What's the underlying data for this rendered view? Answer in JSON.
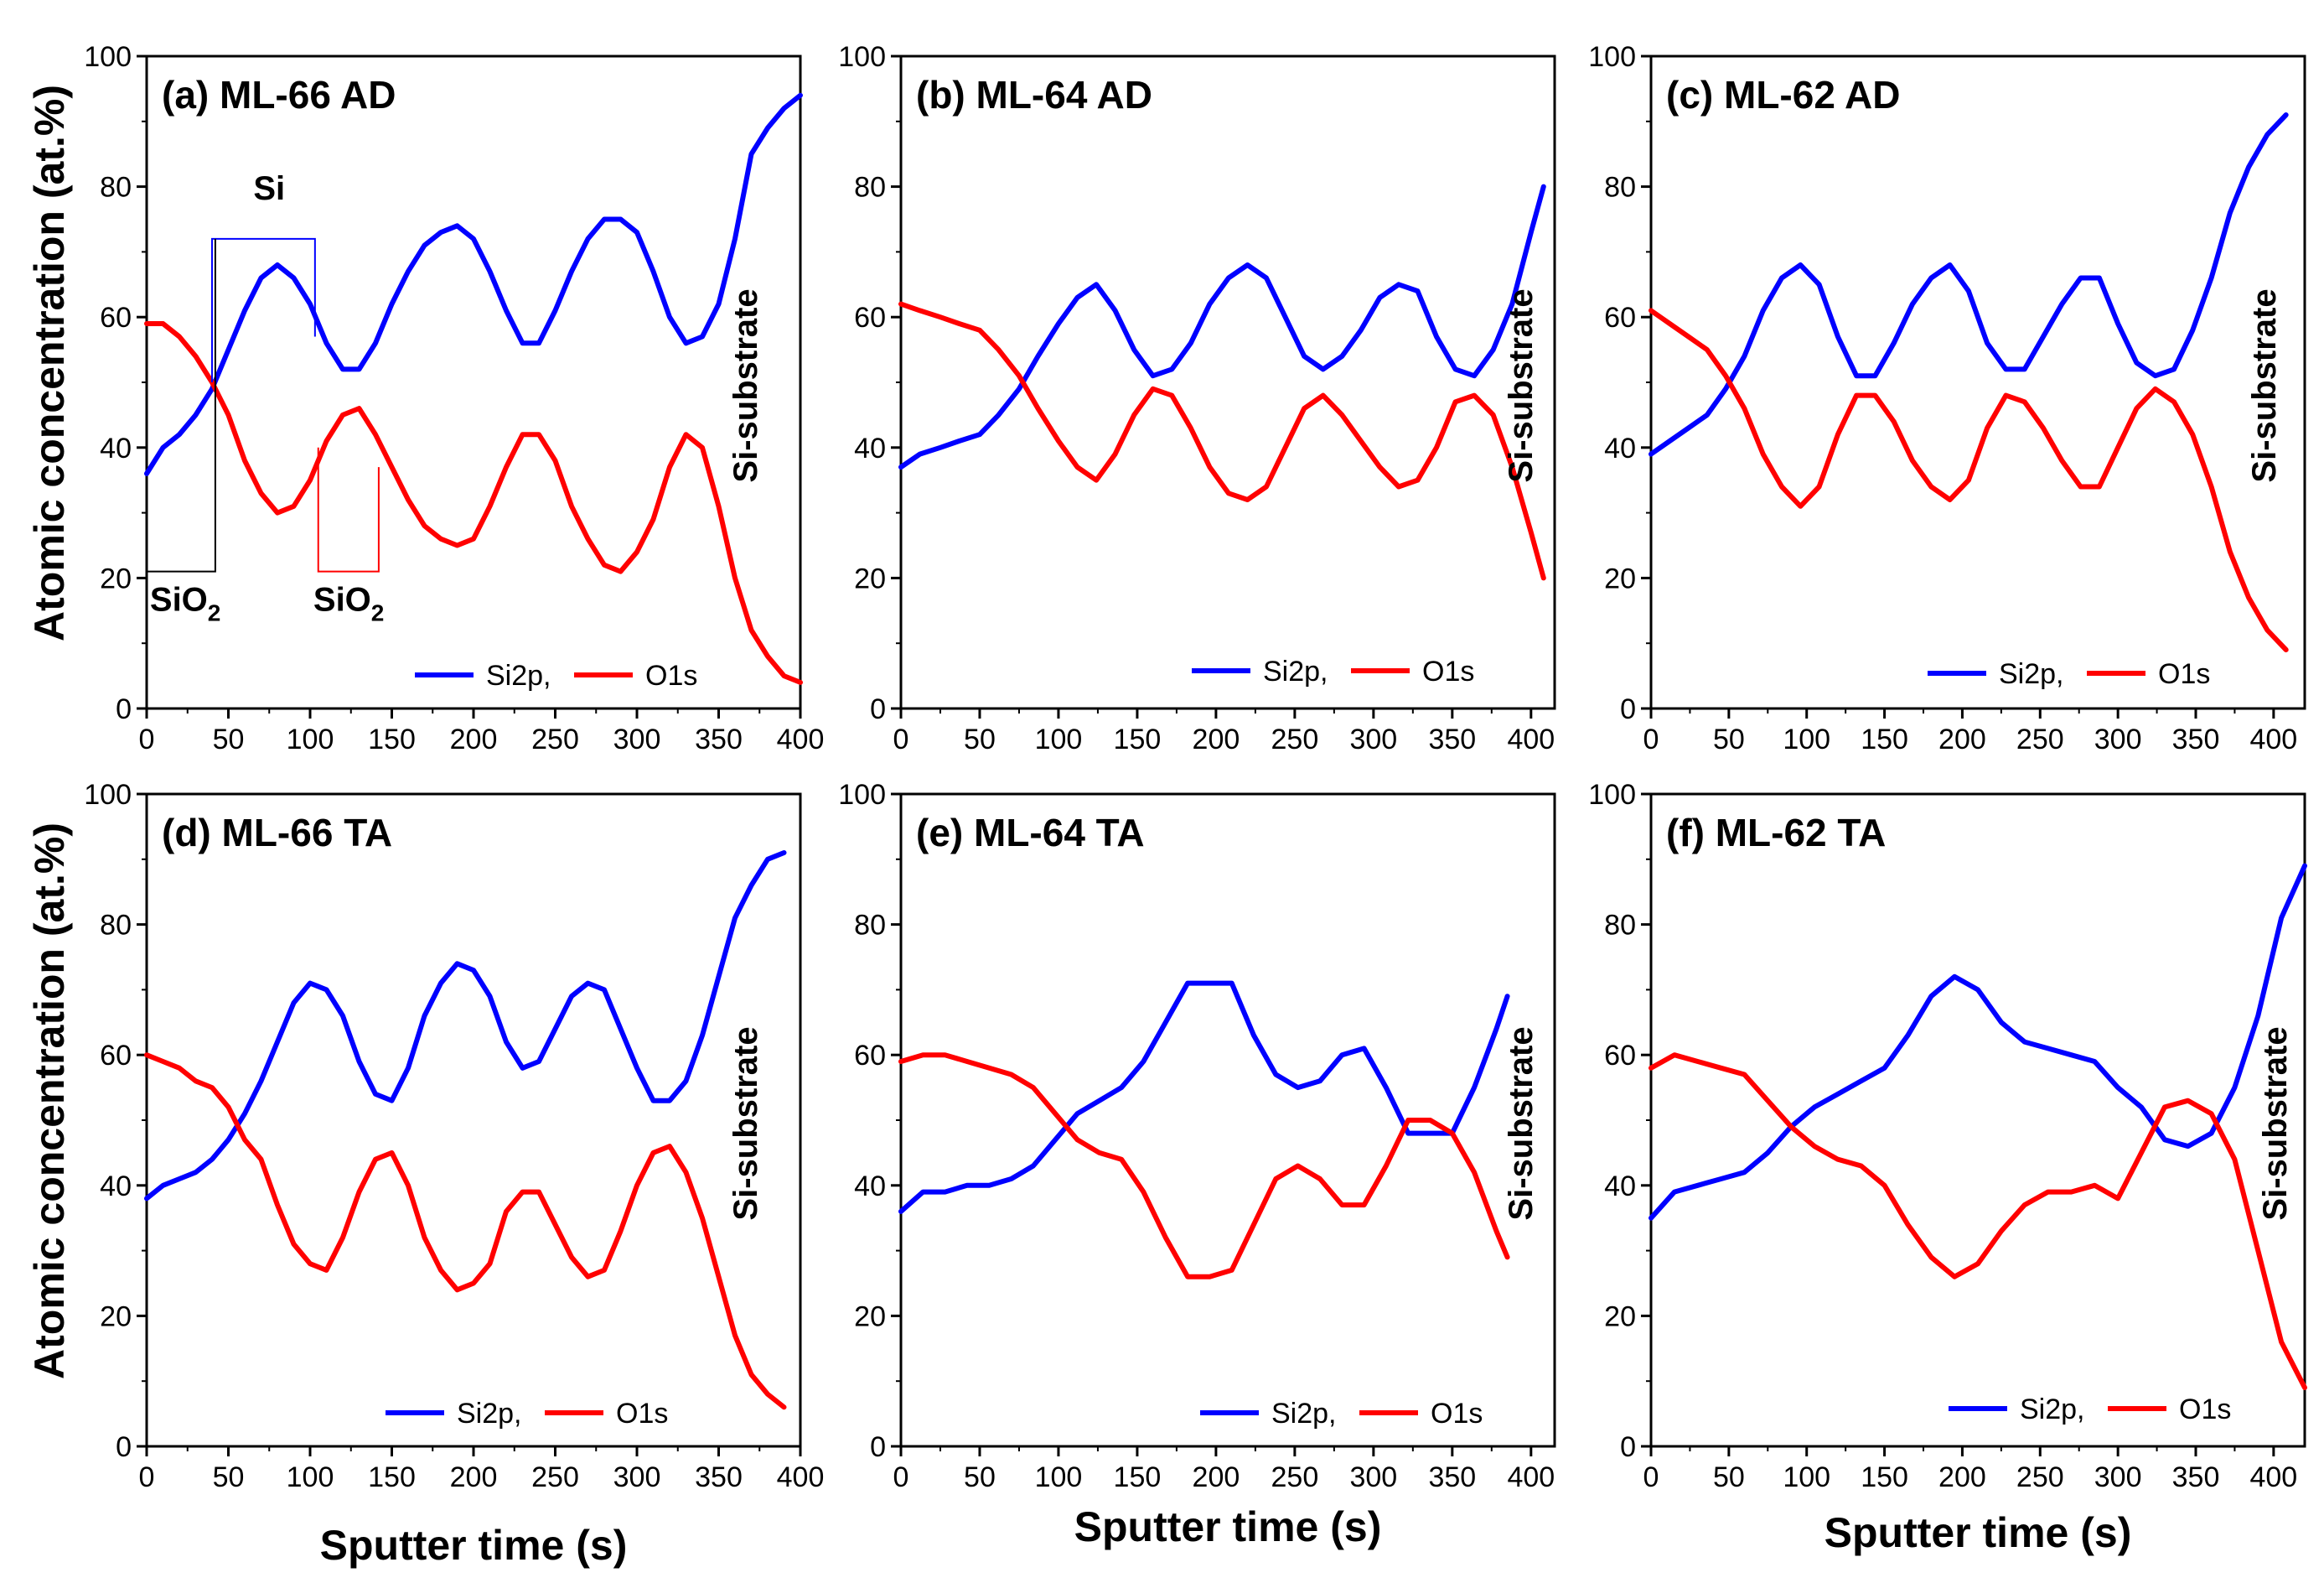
{
  "figure": {
    "ylabel": "Atomic concentration (at.%)",
    "xlabel": "Sputter time (s)",
    "colors": {
      "si": "#0000ff",
      "o": "#ff0000",
      "axis": "#000000",
      "si_box": "#0000ff",
      "sio2_box_black": "#000000",
      "sio2_box_red": "#ff0000"
    }
  },
  "chart_data": [
    {
      "type": "line",
      "title": "(a) ML-66 AD",
      "xlim": [
        0,
        400
      ],
      "ylim": [
        0,
        100
      ],
      "xticks": [
        "0",
        "50",
        "100",
        "150",
        "200",
        "250",
        "300",
        "350",
        "400"
      ],
      "yticks": [
        "0",
        "20",
        "40",
        "60",
        "80",
        "100"
      ],
      "substrate_label": "Si-substrate",
      "legend": [
        "Si2p,",
        "O1s"
      ],
      "annotations": {
        "si": "Si",
        "sio2_a": "SiO",
        "sio2_b": "SiO",
        "subscript": "2"
      },
      "series": [
        {
          "name": "Si2p",
          "x": [
            0,
            10,
            20,
            30,
            40,
            50,
            60,
            70,
            80,
            90,
            100,
            110,
            120,
            130,
            140,
            150,
            160,
            170,
            180,
            190,
            200,
            210,
            220,
            230,
            240,
            250,
            260,
            270,
            280,
            290,
            300,
            310,
            320,
            330,
            340,
            350,
            360,
            370,
            380,
            390,
            400
          ],
          "values": [
            36,
            40,
            42,
            45,
            49,
            55,
            61,
            66,
            68,
            66,
            62,
            56,
            52,
            52,
            56,
            62,
            67,
            71,
            73,
            74,
            72,
            67,
            61,
            56,
            56,
            61,
            67,
            72,
            75,
            75,
            73,
            67,
            60,
            56,
            57,
            62,
            72,
            85,
            89,
            92,
            94
          ]
        },
        {
          "name": "O1s",
          "x": [
            0,
            10,
            20,
            30,
            40,
            50,
            60,
            70,
            80,
            90,
            100,
            110,
            120,
            130,
            140,
            150,
            160,
            170,
            180,
            190,
            200,
            210,
            220,
            230,
            240,
            250,
            260,
            270,
            280,
            290,
            300,
            310,
            320,
            330,
            340,
            350,
            360,
            370,
            380,
            390,
            400
          ],
          "values": [
            59,
            59,
            57,
            54,
            50,
            45,
            38,
            33,
            30,
            31,
            35,
            41,
            45,
            46,
            42,
            37,
            32,
            28,
            26,
            25,
            26,
            31,
            37,
            42,
            42,
            38,
            31,
            26,
            22,
            21,
            24,
            29,
            37,
            42,
            40,
            31,
            20,
            12,
            8,
            5,
            4
          ]
        }
      ]
    },
    {
      "type": "line",
      "title": "(b) ML-64 AD",
      "xlim": [
        0,
        415
      ],
      "ylim": [
        0,
        100
      ],
      "xticks": [
        "0",
        "50",
        "100",
        "150",
        "200",
        "250",
        "300",
        "350",
        "400"
      ],
      "yticks": [
        "0",
        "20",
        "40",
        "60",
        "80",
        "100"
      ],
      "substrate_label": "Si-substrate",
      "legend": [
        "Si2p,",
        "O1s"
      ],
      "series": [
        {
          "name": "Si2p",
          "x": [
            0,
            12,
            25,
            37,
            50,
            62,
            75,
            87,
            100,
            112,
            124,
            136,
            148,
            160,
            172,
            184,
            196,
            208,
            220,
            232,
            244,
            256,
            268,
            280,
            292,
            304,
            316,
            328,
            340,
            352,
            364,
            376,
            388,
            400,
            408
          ],
          "values": [
            37,
            39,
            40,
            41,
            42,
            45,
            49,
            54,
            59,
            63,
            65,
            61,
            55,
            51,
            52,
            56,
            62,
            66,
            68,
            66,
            60,
            54,
            52,
            54,
            58,
            63,
            65,
            64,
            57,
            52,
            51,
            55,
            62,
            73,
            80
          ]
        },
        {
          "name": "O1s",
          "x": [
            0,
            12,
            25,
            37,
            50,
            62,
            75,
            87,
            100,
            112,
            124,
            136,
            148,
            160,
            172,
            184,
            196,
            208,
            220,
            232,
            244,
            256,
            268,
            280,
            292,
            304,
            316,
            328,
            340,
            352,
            364,
            376,
            388,
            400,
            408
          ],
          "values": [
            62,
            61,
            60,
            59,
            58,
            55,
            51,
            46,
            41,
            37,
            35,
            39,
            45,
            49,
            48,
            43,
            37,
            33,
            32,
            34,
            40,
            46,
            48,
            45,
            41,
            37,
            34,
            35,
            40,
            47,
            48,
            45,
            37,
            27,
            20
          ]
        }
      ]
    },
    {
      "type": "line",
      "title": "(c) ML-62 AD",
      "xlim": [
        0,
        420
      ],
      "ylim": [
        0,
        100
      ],
      "xticks": [
        "0",
        "50",
        "100",
        "150",
        "200",
        "250",
        "300",
        "350",
        "400"
      ],
      "yticks": [
        "0",
        "20",
        "40",
        "60",
        "80",
        "100"
      ],
      "substrate_label": "Si-substrate",
      "legend": [
        "Si2p,",
        "O1s"
      ],
      "series": [
        {
          "name": "Si2p",
          "x": [
            0,
            12,
            24,
            36,
            48,
            60,
            72,
            84,
            96,
            108,
            120,
            132,
            144,
            156,
            168,
            180,
            192,
            204,
            216,
            228,
            240,
            252,
            264,
            276,
            288,
            300,
            312,
            324,
            336,
            348,
            360,
            372,
            384,
            396,
            408
          ],
          "values": [
            39,
            41,
            43,
            45,
            49,
            54,
            61,
            66,
            68,
            65,
            57,
            51,
            51,
            56,
            62,
            66,
            68,
            64,
            56,
            52,
            52,
            57,
            62,
            66,
            66,
            59,
            53,
            51,
            52,
            58,
            66,
            76,
            83,
            88,
            91
          ]
        },
        {
          "name": "O1s",
          "x": [
            0,
            12,
            24,
            36,
            48,
            60,
            72,
            84,
            96,
            108,
            120,
            132,
            144,
            156,
            168,
            180,
            192,
            204,
            216,
            228,
            240,
            252,
            264,
            276,
            288,
            300,
            312,
            324,
            336,
            348,
            360,
            372,
            384,
            396,
            408
          ],
          "values": [
            61,
            59,
            57,
            55,
            51,
            46,
            39,
            34,
            31,
            34,
            42,
            48,
            48,
            44,
            38,
            34,
            32,
            35,
            43,
            48,
            47,
            43,
            38,
            34,
            34,
            40,
            46,
            49,
            47,
            42,
            34,
            24,
            17,
            12,
            9
          ]
        }
      ]
    },
    {
      "type": "line",
      "title": "(d) ML-66 TA",
      "xlim": [
        0,
        400
      ],
      "ylim": [
        0,
        100
      ],
      "xticks": [
        "0",
        "50",
        "100",
        "150",
        "200",
        "250",
        "300",
        "350",
        "400"
      ],
      "yticks": [
        "0",
        "20",
        "40",
        "60",
        "80",
        "100"
      ],
      "substrate_label": "Si-substrate",
      "legend": [
        "Si2p,",
        "O1s"
      ],
      "series": [
        {
          "name": "Si2p",
          "x": [
            0,
            10,
            20,
            30,
            40,
            50,
            60,
            70,
            80,
            90,
            100,
            110,
            120,
            130,
            140,
            150,
            160,
            170,
            180,
            190,
            200,
            210,
            220,
            230,
            240,
            250,
            260,
            270,
            280,
            290,
            300,
            310,
            320,
            330,
            340,
            350,
            360,
            370,
            380,
            390
          ],
          "values": [
            38,
            40,
            41,
            42,
            44,
            47,
            51,
            56,
            62,
            68,
            71,
            70,
            66,
            59,
            54,
            53,
            58,
            66,
            71,
            74,
            73,
            69,
            62,
            58,
            59,
            64,
            69,
            71,
            70,
            64,
            58,
            53,
            53,
            56,
            63,
            72,
            81,
            86,
            90,
            91
          ]
        },
        {
          "name": "O1s",
          "x": [
            0,
            10,
            20,
            30,
            40,
            50,
            60,
            70,
            80,
            90,
            100,
            110,
            120,
            130,
            140,
            150,
            160,
            170,
            180,
            190,
            200,
            210,
            220,
            230,
            240,
            250,
            260,
            270,
            280,
            290,
            300,
            310,
            320,
            330,
            340,
            350,
            360,
            370,
            380,
            390
          ],
          "values": [
            60,
            59,
            58,
            56,
            55,
            52,
            47,
            44,
            37,
            31,
            28,
            27,
            32,
            39,
            44,
            45,
            40,
            32,
            27,
            24,
            25,
            28,
            36,
            39,
            39,
            34,
            29,
            26,
            27,
            33,
            40,
            45,
            46,
            42,
            35,
            26,
            17,
            11,
            8,
            6
          ]
        }
      ]
    },
    {
      "type": "line",
      "title": "(e) ML-64 TA",
      "xlim": [
        0,
        415
      ],
      "ylim": [
        0,
        100
      ],
      "xticks": [
        "0",
        "50",
        "100",
        "150",
        "200",
        "250",
        "300",
        "350",
        "400"
      ],
      "yticks": [
        "0",
        "20",
        "40",
        "60",
        "80",
        "100"
      ],
      "substrate_label": "Si-substrate",
      "legend": [
        "Si2p,",
        "O1s"
      ],
      "series": [
        {
          "name": "Si2p",
          "x": [
            0,
            14,
            28,
            42,
            56,
            70,
            84,
            98,
            112,
            126,
            140,
            154,
            168,
            182,
            196,
            210,
            224,
            238,
            252,
            266,
            280,
            294,
            308,
            322,
            336,
            350,
            364,
            378,
            385
          ],
          "values": [
            36,
            39,
            39,
            40,
            40,
            41,
            43,
            47,
            51,
            53,
            55,
            59,
            65,
            71,
            71,
            71,
            63,
            57,
            55,
            56,
            60,
            61,
            55,
            48,
            48,
            48,
            55,
            64,
            69
          ]
        },
        {
          "name": "O1s",
          "x": [
            0,
            14,
            28,
            42,
            56,
            70,
            84,
            98,
            112,
            126,
            140,
            154,
            168,
            182,
            196,
            210,
            224,
            238,
            252,
            266,
            280,
            294,
            308,
            322,
            336,
            350,
            364,
            378,
            385
          ],
          "values": [
            59,
            60,
            60,
            59,
            58,
            57,
            55,
            51,
            47,
            45,
            44,
            39,
            32,
            26,
            26,
            27,
            34,
            41,
            43,
            41,
            37,
            37,
            43,
            50,
            50,
            48,
            42,
            33,
            29
          ]
        }
      ]
    },
    {
      "type": "line",
      "title": "(f) ML-62 TA",
      "xlim": [
        0,
        420
      ],
      "ylim": [
        0,
        100
      ],
      "xticks": [
        "0",
        "50",
        "100",
        "150",
        "200",
        "250",
        "300",
        "350",
        "400"
      ],
      "yticks": [
        "0",
        "20",
        "40",
        "60",
        "80",
        "100"
      ],
      "substrate_label": "Si-substrate",
      "legend": [
        "Si2p,",
        "O1s"
      ],
      "series": [
        {
          "name": "Si2p",
          "x": [
            0,
            15,
            30,
            45,
            60,
            75,
            90,
            105,
            120,
            135,
            150,
            165,
            180,
            195,
            210,
            225,
            240,
            255,
            270,
            285,
            300,
            315,
            330,
            345,
            360,
            375,
            390,
            405,
            420
          ],
          "values": [
            35,
            39,
            40,
            41,
            42,
            45,
            49,
            52,
            54,
            56,
            58,
            63,
            69,
            72,
            70,
            65,
            62,
            61,
            60,
            59,
            55,
            52,
            47,
            46,
            48,
            55,
            66,
            81,
            89
          ]
        },
        {
          "name": "O1s",
          "x": [
            0,
            15,
            30,
            45,
            60,
            75,
            90,
            105,
            120,
            135,
            150,
            165,
            180,
            195,
            210,
            225,
            240,
            255,
            270,
            285,
            300,
            315,
            330,
            345,
            360,
            375,
            390,
            405,
            420
          ],
          "values": [
            58,
            60,
            59,
            58,
            57,
            53,
            49,
            46,
            44,
            43,
            40,
            34,
            29,
            26,
            28,
            33,
            37,
            39,
            39,
            40,
            38,
            45,
            52,
            53,
            51,
            44,
            30,
            16,
            9
          ]
        }
      ]
    }
  ]
}
